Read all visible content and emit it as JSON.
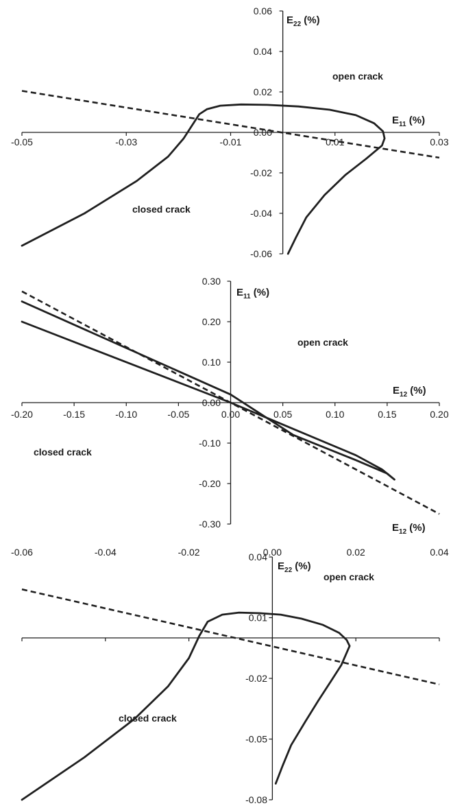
{
  "chart_data": [
    {
      "type": "line",
      "xlabel": {
        "main": "E",
        "sub": "11",
        "unit": " (%)"
      },
      "ylabel": {
        "main": "E",
        "sub": "22",
        "unit": " (%)"
      },
      "xlim": [
        -0.05,
        0.03
      ],
      "ylim": [
        -0.06,
        0.06
      ],
      "x_ticks": [
        "-0.05",
        "-0.03",
        "-0.01",
        "0.01",
        "0.03"
      ],
      "y_ticks": [
        "0.06",
        "0.04",
        "0.02",
        "0.00",
        "-0.02",
        "-0.04",
        "-0.06"
      ],
      "annotations": [
        "open crack",
        "closed crack"
      ],
      "series": [
        {
          "style": "solid",
          "points": [
            [
              -0.05,
              -0.056
            ],
            [
              -0.038,
              -0.04
            ],
            [
              -0.028,
              -0.024
            ],
            [
              -0.022,
              -0.012
            ],
            [
              -0.019,
              -0.003
            ],
            [
              -0.017,
              0.005
            ],
            [
              -0.016,
              0.009
            ],
            [
              -0.0145,
              0.0115
            ],
            [
              -0.012,
              0.0132
            ],
            [
              -0.008,
              0.0138
            ],
            [
              -0.003,
              0.0136
            ],
            [
              0.003,
              0.0128
            ],
            [
              0.009,
              0.0112
            ],
            [
              0.014,
              0.0085
            ],
            [
              0.0175,
              0.0045
            ],
            [
              0.0192,
              0.0005
            ],
            [
              0.0195,
              -0.003
            ],
            [
              0.019,
              -0.0065
            ],
            [
              0.016,
              -0.013
            ],
            [
              0.012,
              -0.021
            ],
            [
              0.008,
              -0.031
            ],
            [
              0.0045,
              -0.042
            ],
            [
              0.0025,
              -0.052
            ],
            [
              0.001,
              -0.06
            ]
          ]
        },
        {
          "style": "dashed",
          "points": [
            [
              -0.05,
              0.0205
            ],
            [
              0.03,
              -0.0125
            ]
          ]
        }
      ]
    },
    {
      "type": "line",
      "xlabel": {
        "main": "E",
        "sub": "12",
        "unit": " (%)"
      },
      "ylabel": {
        "main": "E",
        "sub": "11",
        "unit": " (%)"
      },
      "xlim": [
        -0.2,
        0.2
      ],
      "ylim": [
        -0.3,
        0.3
      ],
      "x_ticks": [
        "-0.20",
        "-0.15",
        "-0.10",
        "-0.05",
        "0.00",
        "0.05",
        "0.10",
        "0.15",
        "0.20"
      ],
      "y_ticks": [
        "0.30",
        "0.20",
        "0.10",
        "0.00",
        "-0.10",
        "-0.20",
        "-0.30"
      ],
      "annotations": [
        "open crack",
        "closed crack"
      ],
      "series": [
        {
          "style": "solid",
          "points": [
            [
              -0.2,
              0.2
            ],
            [
              0.0,
              0.0
            ],
            [
              0.12,
              -0.13
            ],
            [
              0.145,
              -0.165
            ],
            [
              0.157,
              -0.19
            ],
            [
              0.15,
              -0.175
            ],
            [
              0.12,
              -0.142
            ],
            [
              0.06,
              -0.08
            ],
            [
              0.0,
              0.02
            ],
            [
              -0.1,
              0.135
            ],
            [
              -0.2,
              0.25
            ]
          ]
        },
        {
          "style": "dashed",
          "points": [
            [
              -0.2,
              0.275
            ],
            [
              0.2,
              -0.275
            ]
          ]
        }
      ]
    },
    {
      "type": "line",
      "xlabel": {
        "main": "E",
        "sub": "12",
        "unit": " (%)"
      },
      "ylabel": {
        "main": "E",
        "sub": "22",
        "unit": " (%)"
      },
      "xlim": [
        -0.06,
        0.04
      ],
      "ylim": [
        -0.08,
        0.04
      ],
      "x_ticks": [
        "-0.06",
        "-0.04",
        "-0.02",
        "0.00",
        "0.02",
        "0.04"
      ],
      "y_ticks": [
        "0.04",
        "0.01",
        "-0.02",
        "-0.05",
        "-0.08"
      ],
      "annotations": [
        "open crack",
        "closed crack"
      ],
      "series": [
        {
          "style": "solid",
          "points": [
            [
              -0.06,
              -0.08
            ],
            [
              -0.045,
              -0.059
            ],
            [
              -0.033,
              -0.04
            ],
            [
              -0.025,
              -0.024
            ],
            [
              -0.02,
              -0.01
            ],
            [
              -0.0175,
              0.001
            ],
            [
              -0.0155,
              0.008
            ],
            [
              -0.012,
              0.0115
            ],
            [
              -0.008,
              0.0125
            ],
            [
              -0.003,
              0.0122
            ],
            [
              0.002,
              0.0115
            ],
            [
              0.007,
              0.0095
            ],
            [
              0.012,
              0.0065
            ],
            [
              0.016,
              0.0025
            ],
            [
              0.0178,
              -0.001
            ],
            [
              0.0185,
              -0.004
            ],
            [
              0.0165,
              -0.0135
            ],
            [
              0.014,
              -0.0215
            ],
            [
              0.011,
              -0.031
            ],
            [
              0.008,
              -0.041
            ],
            [
              0.0045,
              -0.053
            ],
            [
              0.0025,
              -0.063
            ],
            [
              0.0008,
              -0.072
            ]
          ]
        },
        {
          "style": "dashed",
          "points": [
            [
              -0.06,
              0.024
            ],
            [
              0.04,
              -0.023
            ]
          ]
        }
      ]
    }
  ]
}
